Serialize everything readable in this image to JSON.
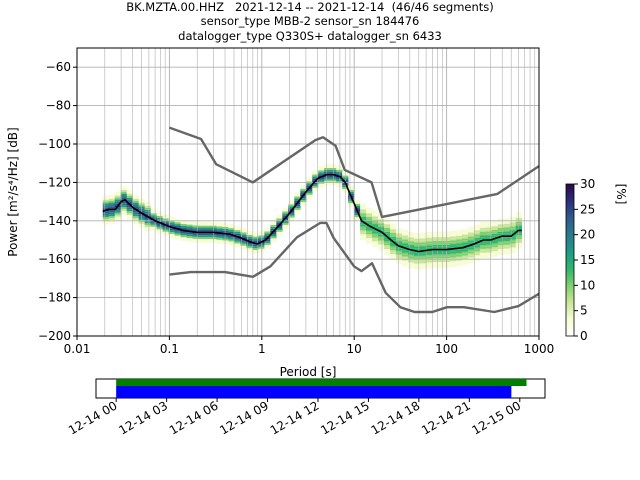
{
  "title_lines": [
    "BK.MZTA.00.HHZ   2021-12-14 -- 2021-12-14  (46/46 segments)",
    "sensor_type MBB-2 sensor_sn 184476",
    "datalogger_type Q330S+ datalogger_sn 6433"
  ],
  "chart_data": [
    {
      "type": "heatmap",
      "xlabel": "Period [s]",
      "ylabel": "Power [m²/s⁴/Hz] [dB]",
      "x_scale": "log",
      "xlim": [
        0.01,
        1000
      ],
      "ylim": [
        -200,
        -50
      ],
      "x_ticks": [
        0.01,
        0.1,
        1,
        10,
        100,
        1000
      ],
      "x_tick_labels": [
        "0.01",
        "0.1",
        "1",
        "10",
        "100",
        "1000"
      ],
      "y_ticks": [
        -200,
        -180,
        -160,
        -140,
        -120,
        -100,
        -80,
        -60
      ],
      "y_tick_labels": [
        "−200",
        "−180",
        "−160",
        "−140",
        "−120",
        "−100",
        "−80",
        "−60"
      ],
      "grid": true,
      "colorbar": {
        "label": "[%]",
        "range": [
          0,
          30
        ],
        "ticks": [
          0,
          5,
          10,
          15,
          20,
          25,
          30
        ],
        "tick_labels": [
          "0",
          "5",
          "10",
          "15",
          "20",
          "25",
          "30"
        ],
        "colors": [
          "#ffffff",
          "#f7fcd5",
          "#c8e69a",
          "#7fcf6e",
          "#2fb56f",
          "#1e9a86",
          "#2a7a8c",
          "#2f5a8a",
          "#2d2d7a",
          "#2a0a4a"
        ]
      },
      "series": [
        {
          "name": "mode",
          "color": "#000000",
          "x": [
            0.019,
            0.022,
            0.026,
            0.03,
            0.033,
            0.04,
            0.05,
            0.07,
            0.1,
            0.14,
            0.2,
            0.3,
            0.45,
            0.6,
            0.75,
            0.9,
            1.1,
            1.5,
            2,
            3,
            4,
            5,
            6,
            7,
            8,
            9,
            10,
            12,
            15,
            20,
            25,
            30,
            40,
            50,
            70,
            100,
            150,
            200,
            250,
            300,
            400,
            500,
            600,
            650
          ],
          "y": [
            -135,
            -134,
            -134,
            -130,
            -129,
            -133,
            -136,
            -140,
            -143,
            -145,
            -146,
            -146,
            -147,
            -149,
            -151,
            -152,
            -150,
            -143,
            -136,
            -125,
            -118,
            -116,
            -116,
            -117,
            -120,
            -126,
            -131,
            -140,
            -143,
            -146,
            -150,
            -153,
            -155,
            -156,
            -155,
            -155,
            -154,
            -152,
            -150,
            -150,
            -148,
            -148,
            -145,
            -145
          ]
        },
        {
          "name": "nhnm",
          "color": "#666666",
          "x": [
            0.1,
            0.22,
            0.32,
            0.8,
            3.8,
            4.6,
            6.3,
            7.9,
            15.4,
            20,
            354.8,
            1000
          ],
          "y": [
            -91.5,
            -97.4,
            -110.5,
            -120,
            -98,
            -96.5,
            -101,
            -113.5,
            -120,
            -138,
            -126,
            -111.5
          ]
        },
        {
          "name": "nlnm",
          "color": "#666666",
          "x": [
            0.1,
            0.17,
            0.4,
            0.8,
            1.24,
            2.4,
            4.3,
            5,
            6,
            10,
            12,
            15.6,
            21.9,
            31.6,
            45,
            70,
            101,
            154,
            328,
            600,
            1000
          ],
          "y": [
            -168,
            -166.7,
            -166.7,
            -169.2,
            -163.7,
            -148.6,
            -141.1,
            -141.1,
            -149,
            -163.8,
            -166.2,
            -162.1,
            -177.5,
            -185,
            -187.5,
            -187.5,
            -185,
            -185,
            -187.5,
            -184.4,
            -178
          ]
        }
      ]
    },
    {
      "type": "timeline",
      "x_tick_labels": [
        "12-14 00",
        "12-14 03",
        "12-14 06",
        "12-14 09",
        "12-14 12",
        "12-14 15",
        "12-14 18",
        "12-14 21",
        "12-15 00"
      ],
      "xlim_hours": [
        -1.2,
        25.5
      ],
      "bars": [
        {
          "name": "available data",
          "color": "#008000",
          "start_hours": 0,
          "end_hours": 24.4
        },
        {
          "name": "processed segments",
          "color": "#0000ff",
          "start_hours": 0,
          "end_hours": 23.5
        }
      ]
    }
  ]
}
